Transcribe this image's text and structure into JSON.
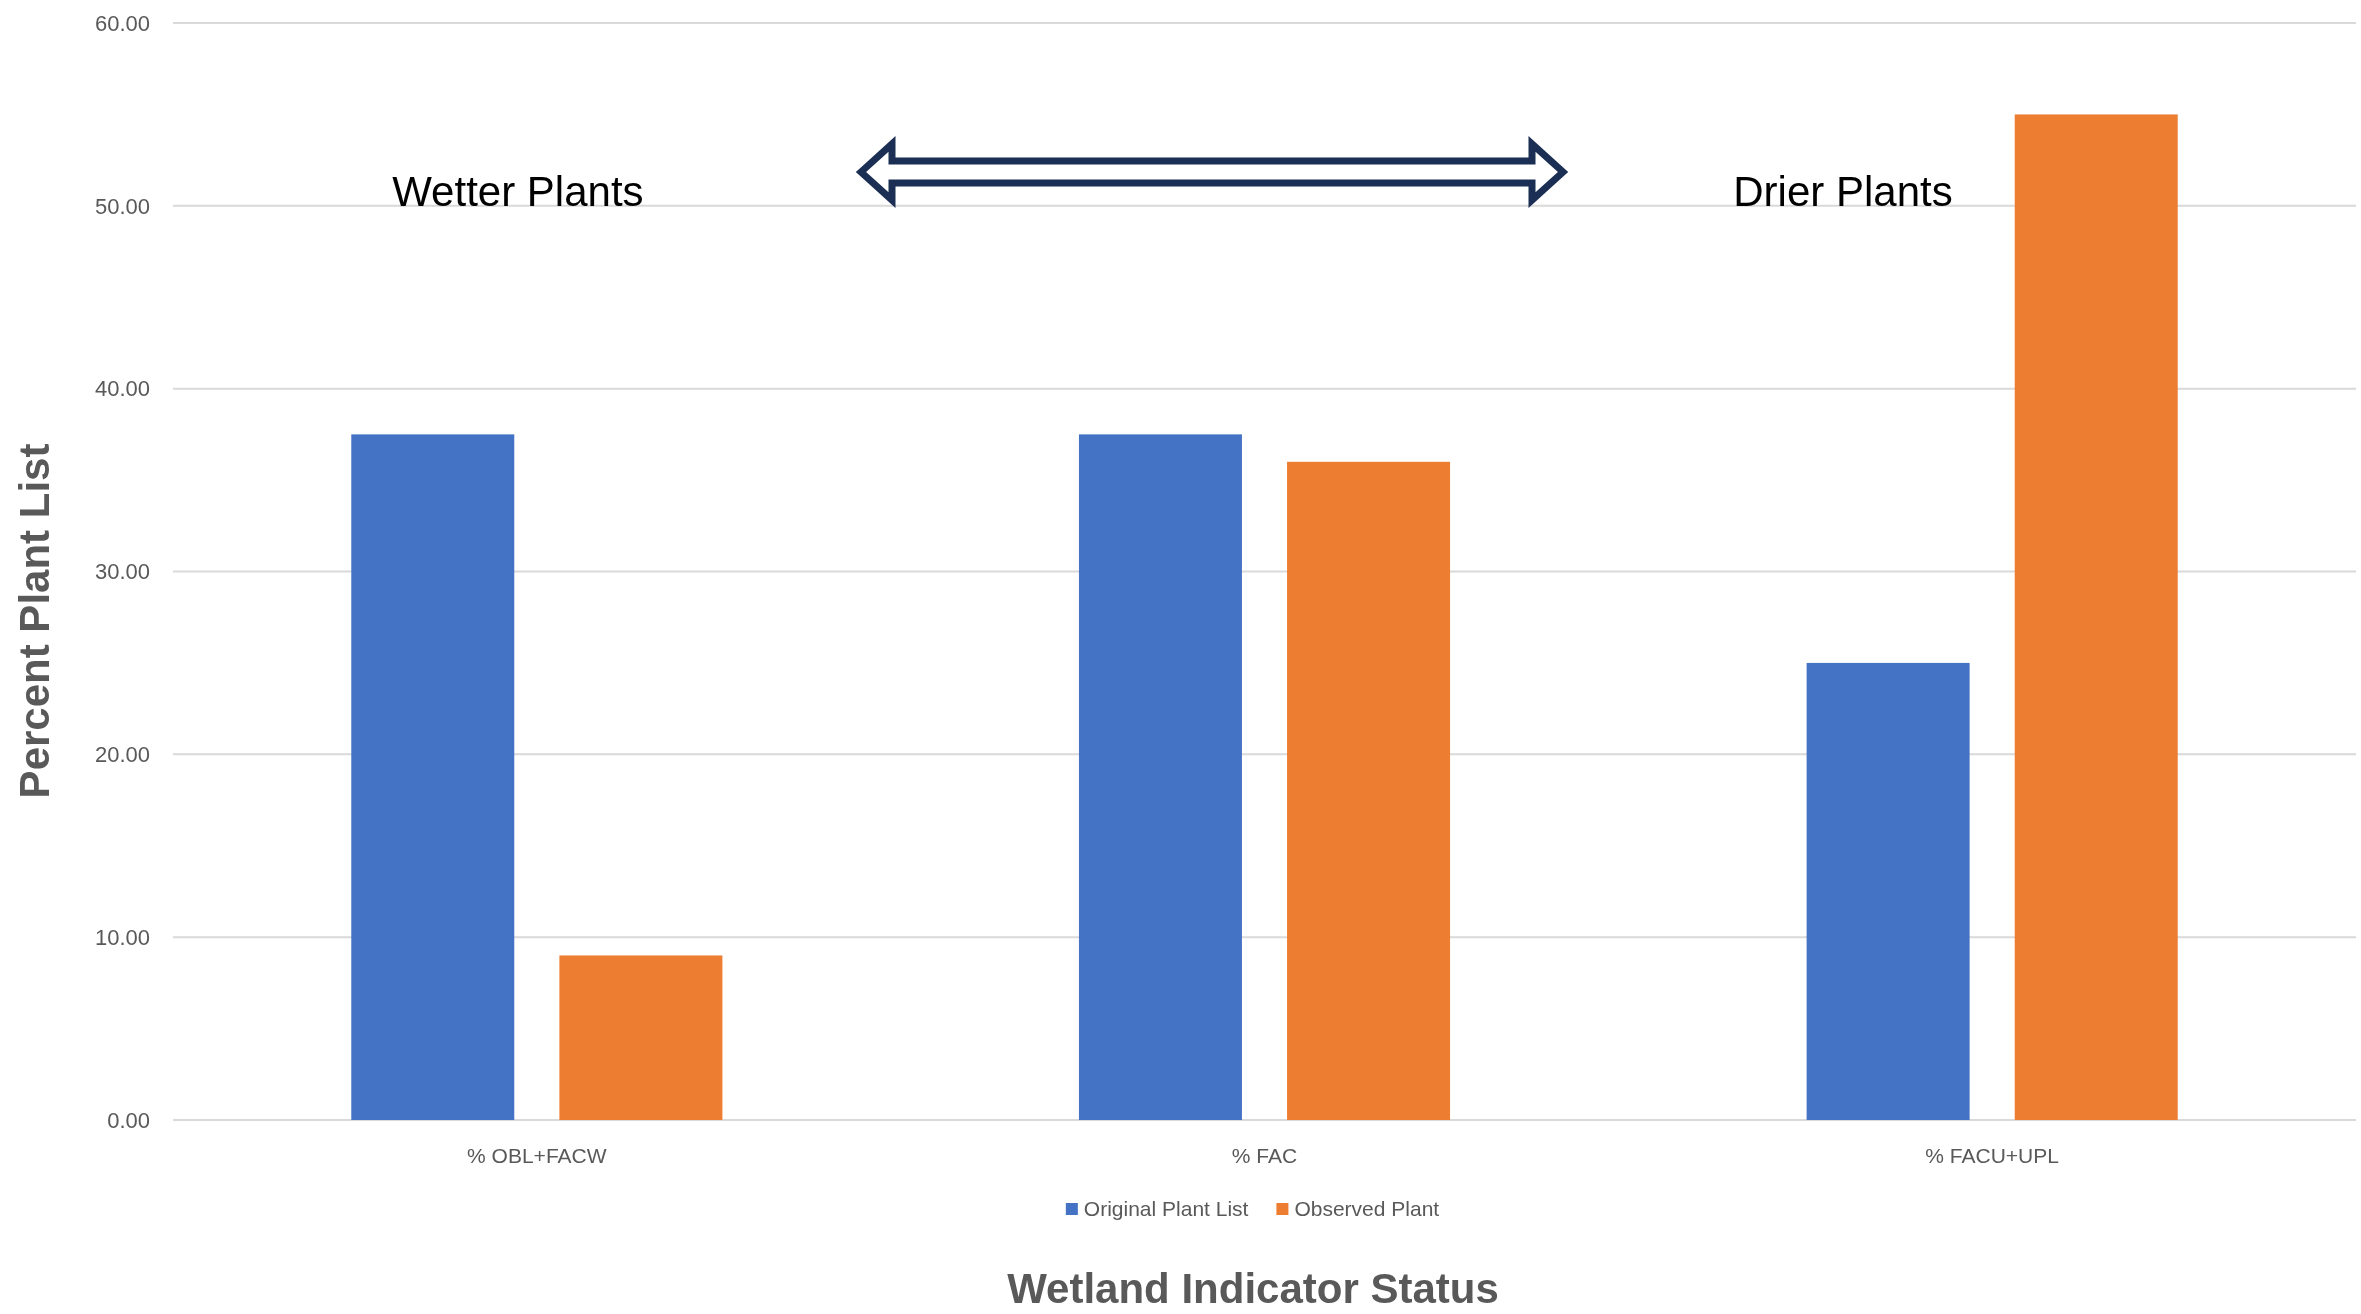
{
  "chart_data": {
    "type": "bar",
    "xlabel": "Wetland Indicator Status",
    "ylabel": "Percent Plant List",
    "annotations": [
      "Wetter Plants",
      "Drier Plants"
    ],
    "categories": [
      "% OBL+FACW",
      "% FAC",
      "% FACU+UPL"
    ],
    "series": [
      {
        "name": "Original Plant List",
        "color": "#4472c4",
        "values": [
          37.5,
          37.5,
          25
        ]
      },
      {
        "name": "Observed Plant",
        "color": "#ed7d31",
        "values": [
          9,
          36,
          55
        ]
      }
    ],
    "ylim": [
      0,
      60
    ],
    "yticks": [
      {
        "value": 0,
        "label": "0.00"
      },
      {
        "value": 10,
        "label": "10.00"
      },
      {
        "value": 20,
        "label": "20.00"
      },
      {
        "value": 30,
        "label": "30.00"
      },
      {
        "value": 40,
        "label": "40.00"
      },
      {
        "value": 50,
        "label": "50.00"
      },
      {
        "value": 60,
        "label": "60.00"
      }
    ],
    "grid": "y",
    "legend": "bottom"
  }
}
